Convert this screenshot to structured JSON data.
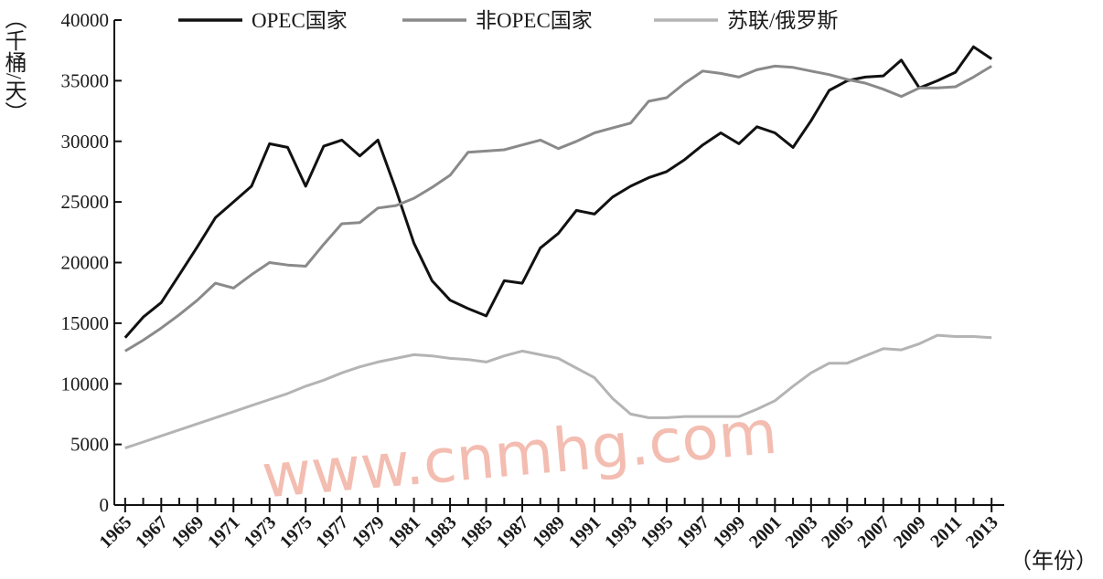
{
  "chart_data": {
    "type": "line",
    "y_label": "（千桶/天）",
    "x_label": "（年份）",
    "watermark": "www.cnmhg.com",
    "legend": "top",
    "x": [
      1965,
      1966,
      1967,
      1968,
      1969,
      1970,
      1971,
      1972,
      1973,
      1974,
      1975,
      1976,
      1977,
      1978,
      1979,
      1980,
      1981,
      1982,
      1983,
      1984,
      1985,
      1986,
      1987,
      1988,
      1989,
      1990,
      1991,
      1992,
      1993,
      1994,
      1995,
      1996,
      1997,
      1998,
      1999,
      2000,
      2001,
      2002,
      2003,
      2004,
      2005,
      2006,
      2007,
      2008,
      2009,
      2010,
      2011,
      2012,
      2013
    ],
    "series": [
      {
        "name": "OPEC国家",
        "color": "#111111",
        "values": [
          13800,
          15500,
          16700,
          19000,
          21300,
          23700,
          25000,
          26300,
          29800,
          29500,
          26300,
          29600,
          30100,
          28800,
          30100,
          26000,
          21600,
          18500,
          16900,
          16200,
          15600,
          18500,
          18300,
          21200,
          22400,
          24300,
          24000,
          25400,
          26300,
          27000,
          27500,
          28500,
          29700,
          30700,
          29800,
          31200,
          30700,
          29500,
          31700,
          34200,
          35000,
          35300,
          35400,
          36700,
          34400,
          35000,
          35700,
          37800,
          36800
        ]
      },
      {
        "name": "非OPEC国家",
        "color": "#8a8a8a",
        "values": [
          12700,
          13600,
          14600,
          15700,
          16900,
          18300,
          17900,
          19000,
          20000,
          19800,
          19700,
          21500,
          23200,
          23300,
          24500,
          24700,
          25300,
          26200,
          27200,
          29100,
          29200,
          29300,
          29700,
          30100,
          29400,
          30000,
          30700,
          31100,
          31500,
          33300,
          33600,
          34800,
          35800,
          35600,
          35300,
          35900,
          36200,
          36100,
          35800,
          35500,
          35100,
          34800,
          34300,
          33700,
          34400,
          34400,
          34500,
          35300,
          36200
        ]
      },
      {
        "name": "苏联/俄罗斯",
        "color": "#b4b4b4",
        "values": [
          4700,
          5200,
          5700,
          6200,
          6700,
          7200,
          7700,
          8200,
          8700,
          9200,
          9800,
          10300,
          10900,
          11400,
          11800,
          12100,
          12400,
          12300,
          12100,
          12000,
          11800,
          12300,
          12700,
          12400,
          12100,
          11300,
          10500,
          8800,
          7500,
          7200,
          7200,
          7300,
          7300,
          7300,
          7300,
          7900,
          8600,
          9800,
          10900,
          11700,
          11700,
          12300,
          12900,
          12800,
          13300,
          14000,
          13900,
          13900,
          13800
        ]
      }
    ],
    "xlim": [
      1964.4,
      2013.7
    ],
    "xticks": [
      1965,
      1967,
      1969,
      1971,
      1973,
      1975,
      1977,
      1979,
      1981,
      1983,
      1985,
      1987,
      1989,
      1991,
      1993,
      1995,
      1997,
      1999,
      2001,
      2003,
      2005,
      2007,
      2009,
      2011,
      2013
    ],
    "ylim": [
      0,
      40000
    ],
    "yticks": [
      0,
      5000,
      10000,
      15000,
      20000,
      25000,
      30000,
      35000,
      40000
    ],
    "grid": false
  }
}
